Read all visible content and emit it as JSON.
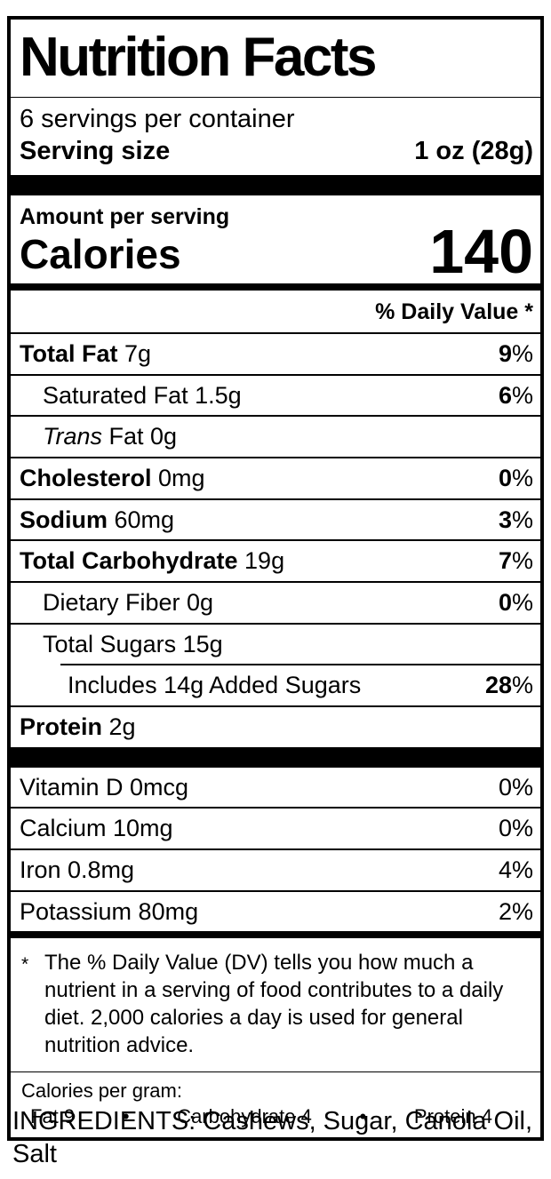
{
  "colors": {
    "ink": "#000000",
    "paper": "#ffffff"
  },
  "label": {
    "title": "Nutrition Facts",
    "servings_per_container": "6 servings per container",
    "serving_size": {
      "label": "Serving size",
      "value": "1 oz (28g)"
    },
    "amount_per_serving": "Amount per serving",
    "calories": {
      "label": "Calories",
      "value": "140"
    },
    "daily_value_header": "% Daily Value *",
    "rows": [
      {
        "bold": "Total Fat",
        "text": " 7g",
        "dv": "9",
        "pct": "%"
      },
      {
        "text": "Saturated Fat 1.5g",
        "dv": "6",
        "pct": "%"
      },
      {
        "italic": "Trans",
        "text": " Fat 0g"
      },
      {
        "bold": "Cholesterol",
        "text": " 0mg",
        "dv": "0",
        "pct": "%"
      },
      {
        "bold": "Sodium",
        "text": " 60mg",
        "dv": "3",
        "pct": "%"
      },
      {
        "bold": "Total Carbohydrate",
        "text": " 19g",
        "dv": "7",
        "pct": "%"
      },
      {
        "text": "Dietary Fiber 0g",
        "dv": "0",
        "pct": "%"
      },
      {
        "text": "Total Sugars 15g"
      },
      {
        "text": "Includes 14g Added Sugars",
        "dv": "28",
        "pct": "%"
      },
      {
        "bold": "Protein",
        "text": " 2g"
      }
    ],
    "micros": [
      {
        "text": "Vitamin D 0mcg",
        "dv": "0%"
      },
      {
        "text": "Calcium 10mg",
        "dv": "0%"
      },
      {
        "text": "Iron 0.8mg",
        "dv": "4%"
      },
      {
        "text": "Potassium 80mg",
        "dv": "2%"
      }
    ],
    "footnote": {
      "marker": "*",
      "text": "The % Daily Value (DV) tells you how much a nutrient in a serving of food contributes to a daily diet. 2,000 calories a day is used for general nutrition advice."
    },
    "calories_per_gram": {
      "label": "Calories per gram:",
      "fat": "Fat 9",
      "bullet1": "•",
      "carb": "Carbohydrate 4",
      "bullet2": "•",
      "protein": "Protein 4"
    }
  },
  "ingredients": "INGREDIENTS: Cashews, Sugar, Canola Oil, Salt"
}
